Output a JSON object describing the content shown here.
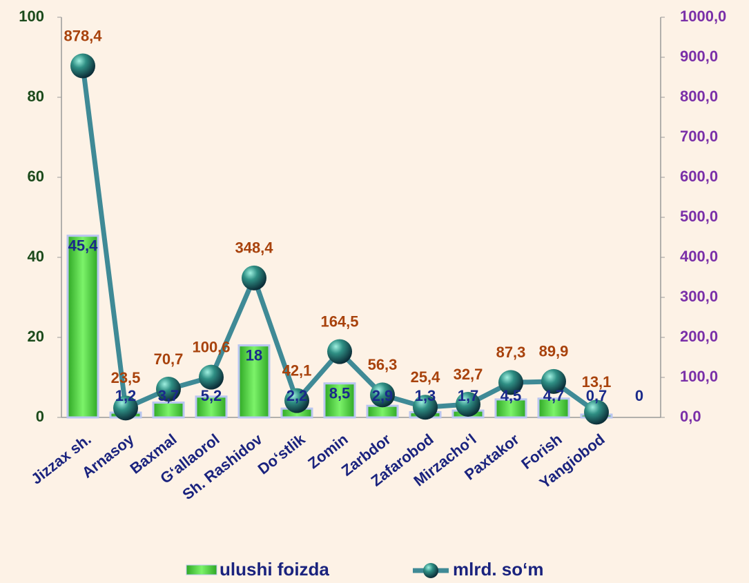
{
  "chart_data": {
    "type": "bar_line",
    "categories": [
      "Jizzax sh.",
      "Arnasoy",
      "Baxmal",
      "G‘allaorol",
      "Sh. Rashidov",
      "Do‘stlik",
      "Zomin",
      "Zarbdor",
      "Zafarobod",
      "Mirzacho‘l",
      "Paxtakor",
      "Forish",
      "Yangiobod",
      null
    ],
    "series": [
      {
        "name": "ulushi foizda",
        "type": "bar",
        "color": "#4cd43c",
        "values": [
          45.4,
          1.2,
          3.7,
          5.2,
          18,
          2.2,
          8.5,
          2.9,
          1.3,
          1.7,
          4.5,
          4.7,
          0.7,
          0
        ],
        "value_labels": [
          "45,4",
          "1,2",
          "3,7",
          "5,2",
          "18",
          "2,2",
          "8,5",
          "2,9",
          "1,3",
          "1,7",
          "4,5",
          "4,7",
          "0,7",
          "0"
        ]
      },
      {
        "name": "mlrd. so‘m",
        "type": "line",
        "axis": "y2",
        "color": "#3f8a96",
        "values": [
          878.4,
          23.5,
          70.7,
          100.6,
          348.4,
          42.1,
          164.5,
          56.3,
          25.4,
          32.7,
          87.3,
          89.9,
          13.1,
          null
        ],
        "value_labels": [
          "878,4",
          "23,5",
          "70,7",
          "100,6",
          "348,4",
          "42,1",
          "164,5",
          "56,3",
          "25,4",
          "32,7",
          "87,3",
          "89,9",
          "13,1",
          null
        ]
      }
    ],
    "ylim": [
      0,
      100
    ],
    "yticks": [
      0,
      20,
      40,
      60,
      80,
      100
    ],
    "y2lim": [
      0,
      1000
    ],
    "y2ticks": [
      {
        "value": 0,
        "label": "0,0"
      },
      {
        "value": 100,
        "label": "100,0"
      },
      {
        "value": 200,
        "label": "200,0"
      },
      {
        "value": 300,
        "label": "300,0"
      },
      {
        "value": 400,
        "label": "400,0"
      },
      {
        "value": 500,
        "label": "500,0"
      },
      {
        "value": 600,
        "label": "600,0"
      },
      {
        "value": 700,
        "label": "700,0"
      },
      {
        "value": 800,
        "label": "800,0"
      },
      {
        "value": 900,
        "label": "900,0"
      },
      {
        "value": 1000,
        "label": "1000,0"
      }
    ],
    "legend": "bottom"
  }
}
